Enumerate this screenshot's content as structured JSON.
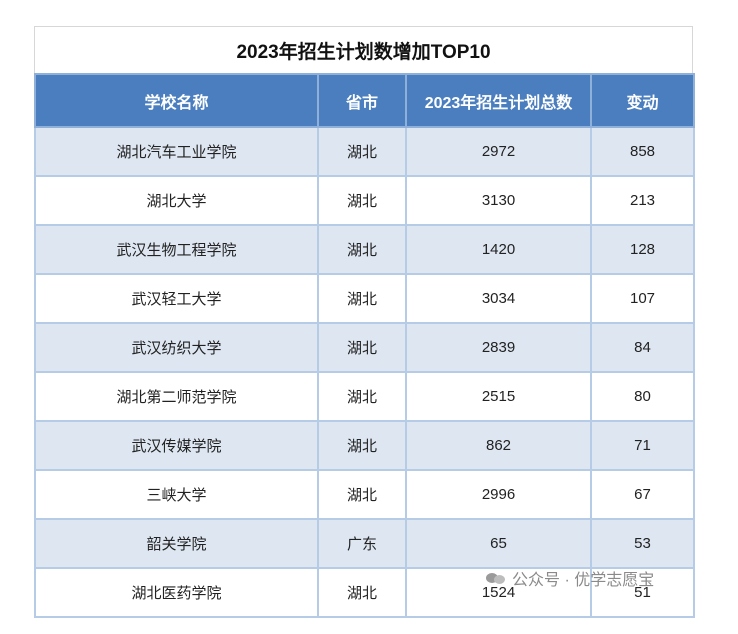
{
  "title": "2023年招生计划数增加TOP10",
  "columns": [
    "学校名称",
    "省市",
    "2023年招生计划总数",
    "变动"
  ],
  "rows": [
    {
      "name": "湖北汽车工业学院",
      "province": "湖北",
      "total": "2972",
      "change": "858"
    },
    {
      "name": "湖北大学",
      "province": "湖北",
      "total": "3130",
      "change": "213"
    },
    {
      "name": "武汉生物工程学院",
      "province": "湖北",
      "total": "1420",
      "change": "128"
    },
    {
      "name": "武汉轻工大学",
      "province": "湖北",
      "total": "3034",
      "change": "107"
    },
    {
      "name": "武汉纺织大学",
      "province": "湖北",
      "total": "2839",
      "change": "84"
    },
    {
      "name": "湖北第二师范学院",
      "province": "湖北",
      "total": "2515",
      "change": "80"
    },
    {
      "name": "武汉传媒学院",
      "province": "湖北",
      "total": "862",
      "change": "71"
    },
    {
      "name": "三峡大学",
      "province": "湖北",
      "total": "2996",
      "change": "67"
    },
    {
      "name": "韶关学院",
      "province": "广东",
      "total": "65",
      "change": "53"
    },
    {
      "name": "湖北医药学院",
      "province": "湖北",
      "total": "1524",
      "change": "51"
    }
  ],
  "watermark": {
    "text": "公众号 · 优学志愿宝",
    "icon": "wechat-icon"
  },
  "colors": {
    "header_bg": "#4a7ebf",
    "stripe": "#dde6f1",
    "border": "#b5cbe6"
  }
}
